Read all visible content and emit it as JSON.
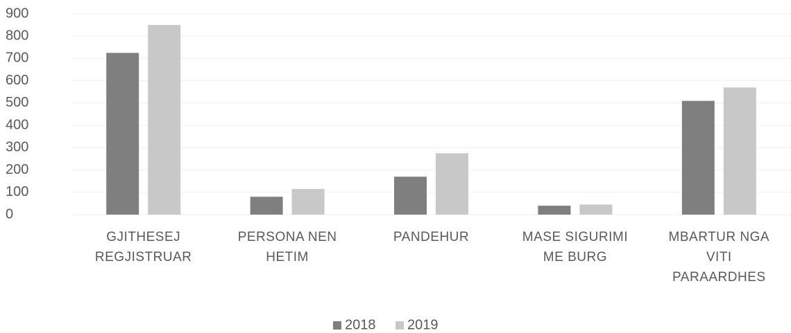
{
  "chart_data": {
    "type": "bar",
    "categories": [
      "GJITHESEJ\nREGJISTRUAR",
      "PERSONA NEN\nHETIM",
      "PANDEHUR",
      "MASE SIGURIMI\nME BURG",
      "MBARTUR NGA\nVITI\nPARAARDHES"
    ],
    "series": [
      {
        "name": "2018",
        "color": "#7f7f7f",
        "values": [
          725,
          80,
          170,
          40,
          510
        ]
      },
      {
        "name": "2019",
        "color": "#c8c8c8",
        "values": [
          850,
          115,
          275,
          45,
          570
        ]
      }
    ],
    "ylim": [
      0,
      900
    ],
    "yticks": [
      0,
      100,
      200,
      300,
      400,
      500,
      600,
      700,
      800,
      900
    ],
    "grid": true,
    "legend": "bottom"
  }
}
